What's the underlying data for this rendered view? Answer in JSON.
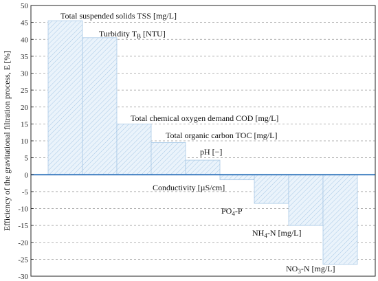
{
  "chart_data": {
    "type": "bar",
    "ylabel": "Efficiency of the gravitational filtration process, E [%]",
    "ylim": [
      -30,
      50
    ],
    "yticks": [
      -30,
      -25,
      -20,
      -15,
      -10,
      -5,
      0,
      5,
      10,
      15,
      20,
      25,
      30,
      35,
      40,
      45,
      50
    ],
    "grid": true,
    "categories": [
      {
        "label": "Total suspended solids TSS [mg/L]",
        "value": 45.5
      },
      {
        "label": "Turbidity T_B [NTU]",
        "value": 40.5
      },
      {
        "label": "Total chemical oxygen demand COD [mg/L]",
        "value": 15.0
      },
      {
        "label": "Total organic carbon TOC [mg/L]",
        "value": 9.5
      },
      {
        "label": "pH [−]",
        "value": 4.3
      },
      {
        "label": "Conductivity [µS/cm]",
        "value": -1.5
      },
      {
        "label": "PO4-P",
        "value": -8.5
      },
      {
        "label": "NH4-N [mg/L]",
        "value": -15.0
      },
      {
        "label": "NO3-N [mg/L]",
        "value": -26.5
      }
    ],
    "labels_rich": {
      "tss": "Total suspended solids TSS [mg/L]",
      "turb_main": "Turbidity T",
      "turb_sub": "B",
      "turb_tail": " [NTU]",
      "cod": "Total chemical oxygen demand COD [mg/L]",
      "toc": "Total organic carbon TOC [mg/L]",
      "ph": "pH [−]",
      "cond": "Conductivity [µS/cm]",
      "po4_main": "PO",
      "po4_sub": "4",
      "po4_tail": "-P",
      "nh4_main": "NH",
      "nh4_sub": "4",
      "nh4_tail": "-N [mg/L]",
      "no3_main": "NO",
      "no3_sub": "3",
      "no3_tail": "-N [mg/L]"
    },
    "colors": {
      "bar_fill": "#eaf3fb",
      "bar_hatch": "#a9c9e6",
      "zero_line": "#3a7bbf"
    }
  }
}
